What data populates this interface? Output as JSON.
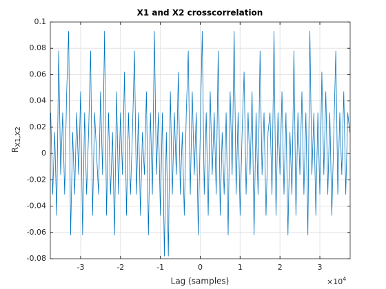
{
  "chart_data": {
    "type": "line",
    "title": "X1 and X2 crosscorrelation",
    "x_label": "Lag (samples)",
    "y_label": "R",
    "y_label_subscript": "X1,X2",
    "x_exponent_base": "×10",
    "x_exponent_power": "4",
    "color": "#0072bd",
    "grid": true,
    "xlim": [
      -37600,
      37600
    ],
    "ylim": [
      -0.08,
      0.1
    ],
    "xticks": [
      {
        "value": -30000,
        "label": "-3"
      },
      {
        "value": -20000,
        "label": "-2"
      },
      {
        "value": -10000,
        "label": "-1"
      },
      0,
      {
        "value": 10000,
        "label": "1"
      },
      {
        "value": 20000,
        "label": "2"
      },
      {
        "value": 30000,
        "label": "3"
      }
    ],
    "yticks": [
      -0.08,
      -0.06,
      -0.04,
      -0.02,
      0,
      0.02,
      0.04,
      0.06,
      0.08,
      0.1
    ],
    "x": [
      -37500,
      -37000,
      -36500,
      -36000,
      -35500,
      -35000,
      -34500,
      -34000,
      -33500,
      -33000,
      -32500,
      -32000,
      -31500,
      -31000,
      -30500,
      -30000,
      -29500,
      -29000,
      -28500,
      -28000,
      -27500,
      -27000,
      -26500,
      -26000,
      -25500,
      -25000,
      -24500,
      -24000,
      -23500,
      -23000,
      -22500,
      -22000,
      -21500,
      -21000,
      -20500,
      -20000,
      -19500,
      -19000,
      -18500,
      -18000,
      -17500,
      -17000,
      -16500,
      -16000,
      -15500,
      -15000,
      -14500,
      -14000,
      -13500,
      -13000,
      -12500,
      -12000,
      -11500,
      -11000,
      -10500,
      -10000,
      -9500,
      -9000,
      -8500,
      -8000,
      -7500,
      -7000,
      -6500,
      -6000,
      -5500,
      -5000,
      -4500,
      -4000,
      -3500,
      -3000,
      -2500,
      -2000,
      -1500,
      -1000,
      -500,
      0,
      500,
      1000,
      1500,
      2000,
      2500,
      3000,
      3500,
      4000,
      4500,
      5000,
      5500,
      6000,
      6500,
      7000,
      7500,
      8000,
      8500,
      9000,
      9500,
      10000,
      10500,
      11000,
      11500,
      12000,
      12500,
      13000,
      13500,
      14000,
      14500,
      15000,
      15500,
      16000,
      16500,
      17000,
      17500,
      18000,
      18500,
      19000,
      19500,
      20000,
      20500,
      21000,
      21500,
      22000,
      22500,
      23000,
      23500,
      24000,
      24500,
      25000,
      25500,
      26000,
      26500,
      27000,
      27500,
      28000,
      28500,
      29000,
      29500,
      30000,
      30500,
      31000,
      31500,
      32000,
      32500,
      33000,
      33500,
      34000,
      34500,
      35000,
      35500,
      36000,
      36500,
      37000,
      37500
    ],
    "values": [
      0.031,
      -0.031,
      0.016,
      -0.047,
      0.078,
      -0.016,
      0.031,
      -0.031,
      0.047,
      0.093,
      -0.062,
      0.016,
      -0.031,
      0.031,
      -0.016,
      0.047,
      -0.062,
      0.031,
      -0.031,
      0.016,
      0.078,
      -0.047,
      0.031,
      0,
      -0.031,
      0.047,
      -0.016,
      0.093,
      -0.047,
      0.031,
      -0.031,
      0.016,
      -0.062,
      0.047,
      -0.031,
      0.031,
      -0.016,
      0.062,
      -0.047,
      0.031,
      -0.031,
      0.016,
      0.078,
      -0.031,
      0.031,
      -0.047,
      0.016,
      -0.016,
      0.047,
      -0.062,
      0.031,
      -0.031,
      0.093,
      -0.016,
      0.031,
      -0.047,
      0.031,
      -0.078,
      0.016,
      -0.078,
      0.047,
      -0.031,
      0.031,
      -0.016,
      0.062,
      -0.031,
      0.016,
      -0.047,
      0.031,
      0.078,
      -0.031,
      0.047,
      -0.016,
      0.031,
      -0.062,
      0.016,
      0.093,
      -0.031,
      0.031,
      -0.047,
      0.047,
      -0.016,
      0.031,
      -0.031,
      0.078,
      -0.047,
      0.016,
      -0.031,
      0.031,
      -0.062,
      0.047,
      -0.016,
      0.093,
      -0.031,
      0.031,
      -0.047,
      0.016,
      0.062,
      -0.031,
      0.031,
      -0.016,
      0.047,
      -0.062,
      0.031,
      -0.031,
      0.078,
      -0.016,
      0.031,
      -0.047,
      0.016,
      0.031,
      -0.031,
      0.093,
      -0.047,
      0.031,
      -0.016,
      0.047,
      -0.031,
      0.031,
      -0.062,
      0.016,
      -0.031,
      0.078,
      -0.047,
      0.031,
      -0.016,
      0.047,
      -0.031,
      0.031,
      -0.062,
      0.093,
      -0.016,
      0.031,
      -0.047,
      0.031,
      -0.031,
      0.062,
      -0.016,
      0.047,
      -0.031,
      0.031,
      -0.047,
      0.016,
      0.078,
      -0.031,
      0.031,
      -0.016,
      0.047,
      -0.031,
      0.031,
      0.016
    ]
  }
}
